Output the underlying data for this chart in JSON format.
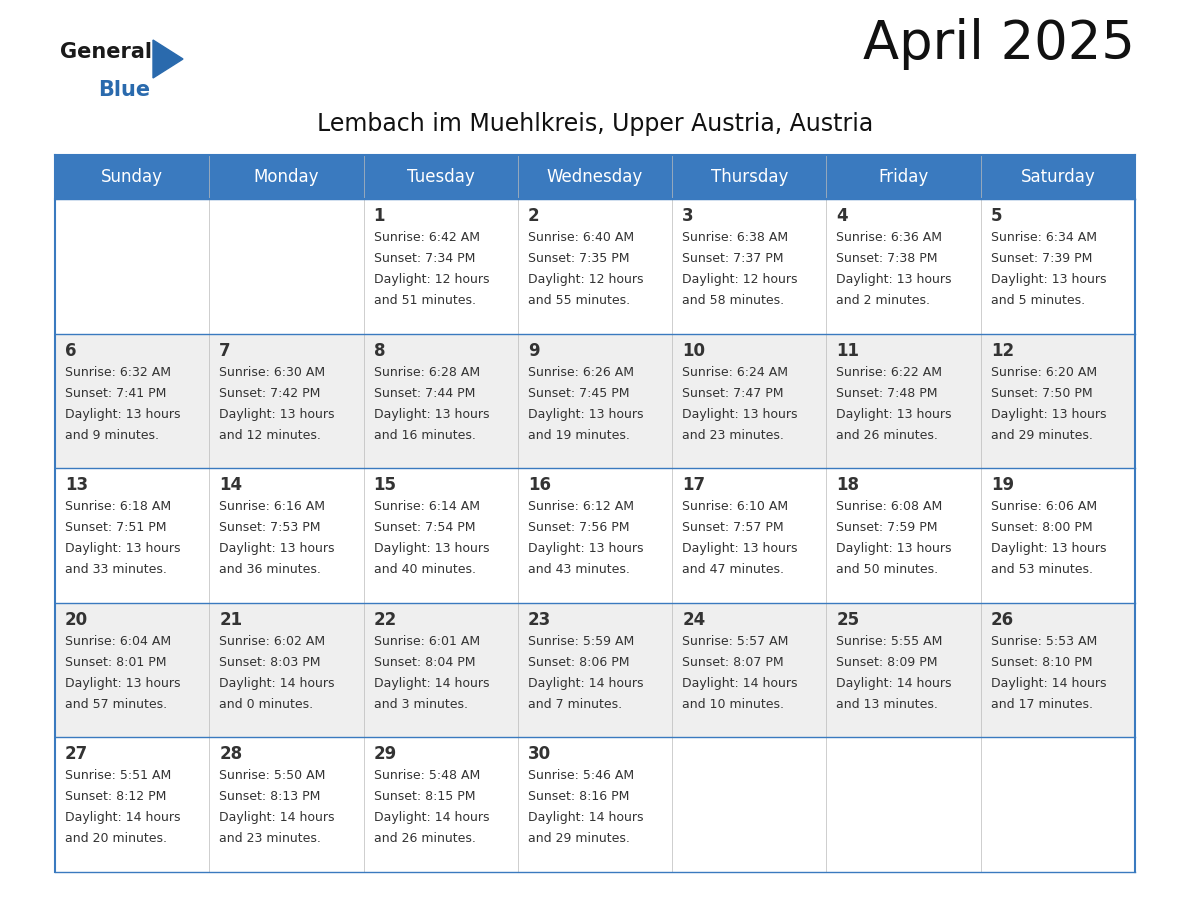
{
  "title": "April 2025",
  "subtitle": "Lembach im Muehlkreis, Upper Austria, Austria",
  "header_color": "#3a7abf",
  "header_text_color": "#ffffff",
  "cell_bg_color": "#ffffff",
  "cell_alt_bg_color": "#efefef",
  "border_color": "#3a7abf",
  "text_color": "#333333",
  "day_names": [
    "Sunday",
    "Monday",
    "Tuesday",
    "Wednesday",
    "Thursday",
    "Friday",
    "Saturday"
  ],
  "weeks": [
    [
      {
        "day": null,
        "info": null
      },
      {
        "day": null,
        "info": null
      },
      {
        "day": 1,
        "info": "Sunrise: 6:42 AM\nSunset: 7:34 PM\nDaylight: 12 hours\nand 51 minutes."
      },
      {
        "day": 2,
        "info": "Sunrise: 6:40 AM\nSunset: 7:35 PM\nDaylight: 12 hours\nand 55 minutes."
      },
      {
        "day": 3,
        "info": "Sunrise: 6:38 AM\nSunset: 7:37 PM\nDaylight: 12 hours\nand 58 minutes."
      },
      {
        "day": 4,
        "info": "Sunrise: 6:36 AM\nSunset: 7:38 PM\nDaylight: 13 hours\nand 2 minutes."
      },
      {
        "day": 5,
        "info": "Sunrise: 6:34 AM\nSunset: 7:39 PM\nDaylight: 13 hours\nand 5 minutes."
      }
    ],
    [
      {
        "day": 6,
        "info": "Sunrise: 6:32 AM\nSunset: 7:41 PM\nDaylight: 13 hours\nand 9 minutes."
      },
      {
        "day": 7,
        "info": "Sunrise: 6:30 AM\nSunset: 7:42 PM\nDaylight: 13 hours\nand 12 minutes."
      },
      {
        "day": 8,
        "info": "Sunrise: 6:28 AM\nSunset: 7:44 PM\nDaylight: 13 hours\nand 16 minutes."
      },
      {
        "day": 9,
        "info": "Sunrise: 6:26 AM\nSunset: 7:45 PM\nDaylight: 13 hours\nand 19 minutes."
      },
      {
        "day": 10,
        "info": "Sunrise: 6:24 AM\nSunset: 7:47 PM\nDaylight: 13 hours\nand 23 minutes."
      },
      {
        "day": 11,
        "info": "Sunrise: 6:22 AM\nSunset: 7:48 PM\nDaylight: 13 hours\nand 26 minutes."
      },
      {
        "day": 12,
        "info": "Sunrise: 6:20 AM\nSunset: 7:50 PM\nDaylight: 13 hours\nand 29 minutes."
      }
    ],
    [
      {
        "day": 13,
        "info": "Sunrise: 6:18 AM\nSunset: 7:51 PM\nDaylight: 13 hours\nand 33 minutes."
      },
      {
        "day": 14,
        "info": "Sunrise: 6:16 AM\nSunset: 7:53 PM\nDaylight: 13 hours\nand 36 minutes."
      },
      {
        "day": 15,
        "info": "Sunrise: 6:14 AM\nSunset: 7:54 PM\nDaylight: 13 hours\nand 40 minutes."
      },
      {
        "day": 16,
        "info": "Sunrise: 6:12 AM\nSunset: 7:56 PM\nDaylight: 13 hours\nand 43 minutes."
      },
      {
        "day": 17,
        "info": "Sunrise: 6:10 AM\nSunset: 7:57 PM\nDaylight: 13 hours\nand 47 minutes."
      },
      {
        "day": 18,
        "info": "Sunrise: 6:08 AM\nSunset: 7:59 PM\nDaylight: 13 hours\nand 50 minutes."
      },
      {
        "day": 19,
        "info": "Sunrise: 6:06 AM\nSunset: 8:00 PM\nDaylight: 13 hours\nand 53 minutes."
      }
    ],
    [
      {
        "day": 20,
        "info": "Sunrise: 6:04 AM\nSunset: 8:01 PM\nDaylight: 13 hours\nand 57 minutes."
      },
      {
        "day": 21,
        "info": "Sunrise: 6:02 AM\nSunset: 8:03 PM\nDaylight: 14 hours\nand 0 minutes."
      },
      {
        "day": 22,
        "info": "Sunrise: 6:01 AM\nSunset: 8:04 PM\nDaylight: 14 hours\nand 3 minutes."
      },
      {
        "day": 23,
        "info": "Sunrise: 5:59 AM\nSunset: 8:06 PM\nDaylight: 14 hours\nand 7 minutes."
      },
      {
        "day": 24,
        "info": "Sunrise: 5:57 AM\nSunset: 8:07 PM\nDaylight: 14 hours\nand 10 minutes."
      },
      {
        "day": 25,
        "info": "Sunrise: 5:55 AM\nSunset: 8:09 PM\nDaylight: 14 hours\nand 13 minutes."
      },
      {
        "day": 26,
        "info": "Sunrise: 5:53 AM\nSunset: 8:10 PM\nDaylight: 14 hours\nand 17 minutes."
      }
    ],
    [
      {
        "day": 27,
        "info": "Sunrise: 5:51 AM\nSunset: 8:12 PM\nDaylight: 14 hours\nand 20 minutes."
      },
      {
        "day": 28,
        "info": "Sunrise: 5:50 AM\nSunset: 8:13 PM\nDaylight: 14 hours\nand 23 minutes."
      },
      {
        "day": 29,
        "info": "Sunrise: 5:48 AM\nSunset: 8:15 PM\nDaylight: 14 hours\nand 26 minutes."
      },
      {
        "day": 30,
        "info": "Sunrise: 5:46 AM\nSunset: 8:16 PM\nDaylight: 14 hours\nand 29 minutes."
      },
      {
        "day": null,
        "info": null
      },
      {
        "day": null,
        "info": null
      },
      {
        "day": null,
        "info": null
      }
    ]
  ],
  "logo_text1": "General",
  "logo_text2": "Blue",
  "logo_color1": "#1a1a1a",
  "logo_color2": "#2a6aad",
  "logo_triangle_color": "#2a6aad",
  "title_fontsize": 38,
  "subtitle_fontsize": 17,
  "header_fontsize": 12,
  "day_num_fontsize": 12,
  "info_fontsize": 9
}
